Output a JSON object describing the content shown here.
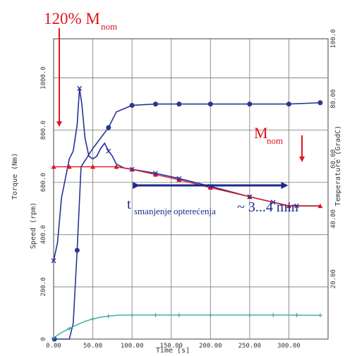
{
  "chart_data": {
    "type": "line",
    "x_axis": {
      "label": "Time [s]",
      "min": 0,
      "max": 350,
      "ticks": [
        0,
        50,
        100,
        150,
        200,
        250,
        300
      ]
    },
    "y_axis_left": {
      "torque_label": "Torque (Nm)",
      "speed_label": "Speed (rpm)",
      "ticks": [
        "0",
        "200.0",
        "400.0",
        "600.0",
        "800.0",
        "1000.0"
      ]
    },
    "y_axis_right": {
      "label": "Temperature (GradC)",
      "min": 0,
      "max": 100,
      "ticks": [
        "20.00",
        "40.00",
        "60.00",
        "80.00",
        "100.0"
      ]
    },
    "grid": true,
    "colors": {
      "speed": "#2a3690",
      "torque": "#26309a",
      "temperature": "#38a8a0",
      "reference": "#e0141e",
      "arrow": "#1a2a8c"
    },
    "series": [
      {
        "name": "speed",
        "x": [
          0,
          20,
          25,
          30,
          35,
          50,
          60,
          70,
          80,
          100,
          130,
          160,
          200,
          250,
          300,
          340
        ],
        "y": [
          0,
          0,
          60,
          340,
          660,
          730,
          770,
          810,
          870,
          895,
          900,
          900,
          900,
          900,
          900,
          905
        ]
      },
      {
        "name": "torque",
        "x": [
          0,
          5,
          10,
          20,
          25,
          30,
          33,
          36,
          40,
          45,
          50,
          55,
          60,
          65,
          70,
          75,
          80,
          90,
          100,
          130,
          160,
          200,
          250,
          300,
          340
        ],
        "y": [
          300,
          370,
          540,
          690,
          720,
          820,
          960,
          900,
          770,
          700,
          690,
          700,
          730,
          750,
          720,
          700,
          670,
          655,
          650,
          635,
          615,
          585,
          545,
          510,
          510
        ]
      },
      {
        "name": "temperature",
        "x": [
          0,
          10,
          20,
          30,
          40,
          50,
          60,
          70,
          80,
          90,
          100,
          150,
          200,
          250,
          300,
          340
        ],
        "y": [
          5,
          25,
          40,
          55,
          68,
          77,
          84,
          88,
          91,
          92,
          92,
          92,
          92,
          92,
          92,
          91
        ]
      },
      {
        "name": "reference",
        "x": [
          0,
          20,
          50,
          80,
          100,
          130,
          160,
          200,
          250,
          300,
          340
        ],
        "y": [
          660,
          660,
          660,
          660,
          650,
          630,
          610,
          580,
          545,
          510,
          510
        ]
      }
    ]
  },
  "annotations": {
    "start_prefix": "120% M",
    "start_sub": "nom",
    "end_prefix": "M",
    "end_sub": "nom",
    "interval_prefix": "t",
    "interval_sub": "smanjenje opterećenja",
    "interval_value": "~ 3...4 min",
    "interval_start_s": 100,
    "interval_end_s": 300
  }
}
